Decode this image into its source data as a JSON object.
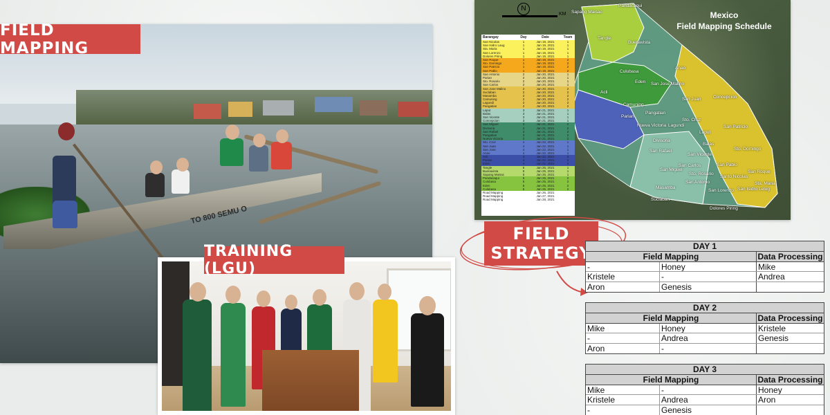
{
  "labels": {
    "field_mapping": "FIELD MAPPING",
    "training": "TRAINING (LGU)",
    "field_strategy_line1": "FIELD",
    "field_strategy_line2": "STRATEGY"
  },
  "photo_texts": {
    "boat_text": "TO 800 SEMU O"
  },
  "map": {
    "title_line1": "Mexico",
    "title_line2": "Field Mapping Schedule",
    "scale_unit": "KM",
    "north": "N",
    "places": [
      "Sapang Maisac",
      "Pandacaqui",
      "Tangle",
      "Buenavista",
      "Culubasa",
      "Eden",
      "Anao",
      "Acli",
      "San Jose Malino",
      "Camuning",
      "San Juan",
      "Concepcion",
      "Parian",
      "Pangatian",
      "Nueva Victoria",
      "Lagundi",
      "Sto. Cruz",
      "Laput",
      "San Patricio",
      "Divisoria",
      "San Rafael",
      "San Vicente",
      "Balas",
      "Sto. Domingo",
      "San Carlos",
      "San Pablo",
      "Sto. Rosario",
      "San Roque",
      "Santo Nicolas",
      "San Antonio",
      "San Miguel",
      "Masamba",
      "Suclaban",
      "San Lorenzo",
      "San Isidro Lelug",
      "Sta. Maria",
      "Dolores Piring"
    ],
    "table": {
      "headers": [
        "Barangay",
        "Day",
        "Date",
        "Team"
      ],
      "rows": [
        [
          "San Nicolas",
          "1",
          "Jan 19, 2021",
          "1"
        ],
        [
          "San Isidro Laug",
          "1",
          "Jan 19, 2021",
          "1"
        ],
        [
          "Sta. Maria",
          "1",
          "Jan 19, 2021",
          "1"
        ],
        [
          "San Lorenzo",
          "1",
          "Jan 19, 2021",
          "1"
        ],
        [
          "Dolores Piring",
          "1",
          "Jan 19, 2021",
          "1"
        ],
        [
          "San Roque",
          "1",
          "Jan 19, 2021",
          "2"
        ],
        [
          "Sto. Domingo",
          "1",
          "Jan 19, 2021",
          "2"
        ],
        [
          "San Patricio",
          "1",
          "Jan 19, 2021",
          "2"
        ],
        [
          "San Pablo",
          "1",
          "Jan 19, 2021",
          "2"
        ],
        [
          "San Antonio",
          "2",
          "Jan 20, 2021",
          "1"
        ],
        [
          "Parian",
          "2",
          "Jan 20, 2021",
          "1"
        ],
        [
          "Sto. Rosario",
          "2",
          "Jan 20, 2021",
          "1"
        ],
        [
          "San Carlos",
          "2",
          "Jan 20, 2021",
          "1"
        ],
        [
          "San Jose Malino",
          "2",
          "Jan 20, 2021",
          "2"
        ],
        [
          "Suclaban",
          "2",
          "Jan 20, 2021",
          "2"
        ],
        [
          "Masamba",
          "2",
          "Jan 20, 2021",
          "2"
        ],
        [
          "Camuning",
          "2",
          "Jan 20, 2021",
          "2"
        ],
        [
          "Lagundi",
          "2",
          "Jan 20, 2021",
          "2"
        ],
        [
          "Pangatian",
          "2",
          "Jan 20, 2021",
          "2"
        ],
        [
          "Laput",
          "3",
          "Jan 21, 2021",
          "1"
        ],
        [
          "Balas",
          "3",
          "Jan 21, 2021",
          "1"
        ],
        [
          "San Vicente",
          "3",
          "Jan 21, 2021",
          "1"
        ],
        [
          "Concepcion",
          "3",
          "Jan 21, 2021",
          "1"
        ],
        [
          "San Miguel",
          "3",
          "Jan 21, 2021",
          "2"
        ],
        [
          "Divisoria",
          "3",
          "Jan 21, 2021",
          "2"
        ],
        [
          "San Rafael",
          "3",
          "Jan 21, 2021",
          "2"
        ],
        [
          "Pangatian",
          "3",
          "Jan 21, 2021",
          "2"
        ],
        [
          "Nueva Victoria",
          "3",
          "Jan 21, 2021",
          "2"
        ],
        [
          "Sto. Cruz",
          "4",
          "Jan 22, 2021",
          "1"
        ],
        [
          "San Juan",
          "4",
          "Jan 22, 2021",
          "1"
        ],
        [
          "San Jose",
          "4",
          "Jan 22, 2021",
          "1"
        ],
        [
          "Anao",
          "4",
          "Jan 22, 2021",
          "1"
        ],
        [
          "Acli",
          "4",
          "Jan 22, 2021",
          "2"
        ],
        [
          "Parian",
          "4",
          "Jan 22, 2021",
          "2"
        ],
        [
          "Eden",
          "4",
          "Jan 22, 2021",
          "2"
        ],
        [
          "Tangle",
          "5",
          "Jan 25, 2021",
          "1"
        ],
        [
          "Buenavista",
          "5",
          "Jan 25, 2021",
          "1"
        ],
        [
          "Sapang Maisac",
          "5",
          "Jan 25, 2021",
          "1"
        ],
        [
          "Pandacaqui",
          "5",
          "Jan 25, 2021",
          "2"
        ],
        [
          "Culubasa",
          "5",
          "Jan 25, 2021",
          "2"
        ],
        [
          "Eden",
          "5",
          "Jan 25, 2021",
          "2"
        ],
        [
          "Culubasa",
          "5",
          "Jan 25, 2021",
          "2"
        ],
        [
          "Road Mapping",
          "",
          "Jan 26, 2021",
          ""
        ],
        [
          "Road Mapping",
          "",
          "Jan 27, 2021",
          ""
        ],
        [
          "Road Mapping",
          "",
          "Jan 28, 2021",
          ""
        ]
      ],
      "row_colors": [
        "#fbf15c",
        "#fbf15c",
        "#fbf15c",
        "#fbf15c",
        "#fbf15c",
        "#f6a81c",
        "#f6a81c",
        "#f6a81c",
        "#f6a81c",
        "#e7d688",
        "#e7d688",
        "#e7d688",
        "#e7d688",
        "#e4c24c",
        "#e4c24c",
        "#e4c24c",
        "#e4c24c",
        "#e4c24c",
        "#e4c24c",
        "#a6cfc0",
        "#a6cfc0",
        "#a6cfc0",
        "#a6cfc0",
        "#3f8c6b",
        "#3f8c6b",
        "#3f8c6b",
        "#3f8c6b",
        "#3f8c6b",
        "#5f78c9",
        "#5f78c9",
        "#5f78c9",
        "#5f78c9",
        "#3c4fa8",
        "#3c4fa8",
        "#3c4fa8",
        "#b6d96b",
        "#b6d96b",
        "#b6d96b",
        "#86c43f",
        "#86c43f",
        "#86c43f",
        "#86c43f",
        "#ffffff",
        "#ffffff",
        "#ffffff"
      ]
    }
  },
  "schedule": {
    "col_field": "Field Mapping",
    "col_data": "Data Processing",
    "days": [
      {
        "title": "DAY 1",
        "rows": [
          [
            "-",
            "Honey",
            "Mike"
          ],
          [
            "Kristele",
            "-",
            "Andrea"
          ],
          [
            "Aron",
            "Genesis",
            ""
          ]
        ]
      },
      {
        "title": "DAY 2",
        "rows": [
          [
            "Mike",
            "Honey",
            "Kristele"
          ],
          [
            "-",
            "Andrea",
            "Genesis"
          ],
          [
            "Aron",
            "-",
            ""
          ]
        ]
      },
      {
        "title": "DAY 3",
        "rows": [
          [
            "Mike",
            "-",
            "Honey"
          ],
          [
            "Kristele",
            "Andrea",
            "Aron"
          ],
          [
            "-",
            "Genesis",
            ""
          ]
        ]
      }
    ]
  },
  "colors": {
    "accent_red": "#d14a45",
    "map_zone_yellow": "#d9c22d",
    "map_zone_teal": "#5f9e86",
    "map_zone_blue": "#4d62b8",
    "map_zone_green": "#3e9a3b"
  }
}
